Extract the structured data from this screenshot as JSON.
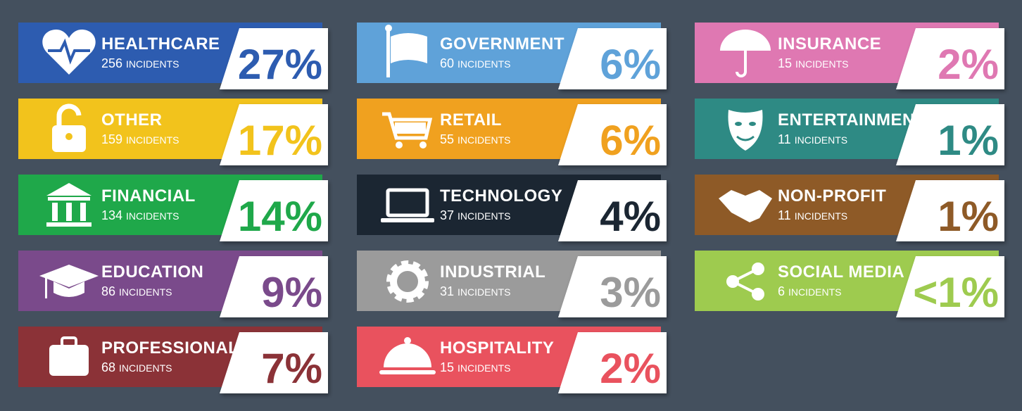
{
  "items": [
    {
      "name": "HEALTHCARE",
      "count": 256,
      "unit": "INCIDENTS",
      "share": "27%",
      "color": "#2d5cb0"
    },
    {
      "name": "OTHER",
      "count": 159,
      "unit": "INCIDENTS",
      "share": "17%",
      "color": "#f2c31c"
    },
    {
      "name": "FINANCIAL",
      "count": 134,
      "unit": "INCIDENTS",
      "share": "14%",
      "color": "#1fa84a"
    },
    {
      "name": "EDUCATION",
      "count": 86,
      "unit": "INCIDENTS",
      "share": "9%",
      "color": "#7a4a8b"
    },
    {
      "name": "PROFESSIONAL",
      "count": 68,
      "unit": "INCIDENTS",
      "share": "7%",
      "color": "#8b3237"
    },
    {
      "name": "GOVERNMENT",
      "count": 60,
      "unit": "INCIDENTS",
      "share": "6%",
      "color": "#5fa2d9"
    },
    {
      "name": "RETAIL",
      "count": 55,
      "unit": "INCIDENTS",
      "share": "6%",
      "color": "#f0a11f"
    },
    {
      "name": "TECHNOLOGY",
      "count": 37,
      "unit": "INCIDENTS",
      "share": "4%",
      "color": "#1b2632"
    },
    {
      "name": "INDUSTRIAL",
      "count": 31,
      "unit": "INCIDENTS",
      "share": "3%",
      "color": "#9b9b9b"
    },
    {
      "name": "HOSPITALITY",
      "count": 15,
      "unit": "INCIDENTS",
      "share": "2%",
      "color": "#e9525e"
    },
    {
      "name": "INSURANCE",
      "count": 15,
      "unit": "INCIDENTS",
      "share": "2%",
      "color": "#df78b2"
    },
    {
      "name": "ENTERTAINMENT",
      "count": 11,
      "unit": "INCIDENTS",
      "share": "1%",
      "color": "#2e8a84"
    },
    {
      "name": "NON-PROFIT",
      "count": 11,
      "unit": "INCIDENTS",
      "share": "1%",
      "color": "#8e5a27"
    },
    {
      "name": "SOCIAL MEDIA",
      "count": 6,
      "unit": "INCIDENTS",
      "share": "<1%",
      "color": "#9ecb4f"
    }
  ]
}
